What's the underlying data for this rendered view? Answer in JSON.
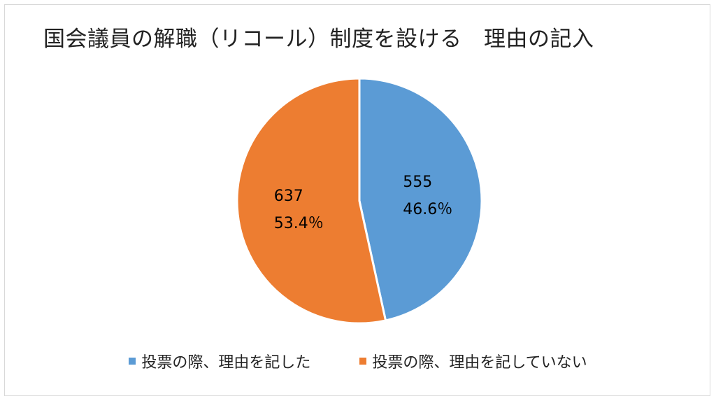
{
  "chart_data": {
    "type": "pie",
    "title": "国会議員の解職（リコール）制度を設ける　理由の記入",
    "slices": [
      {
        "label": "投票の際、理由を記した",
        "value": 555,
        "percent_label": "46.6％",
        "color": "#5b9bd5"
      },
      {
        "label": "投票の際、理由を記していない",
        "value": 637,
        "percent_label": "53.4％",
        "color": "#ed7d31"
      }
    ],
    "start_angle_deg": 0,
    "direction": "clockwise",
    "legend_position": "bottom"
  }
}
